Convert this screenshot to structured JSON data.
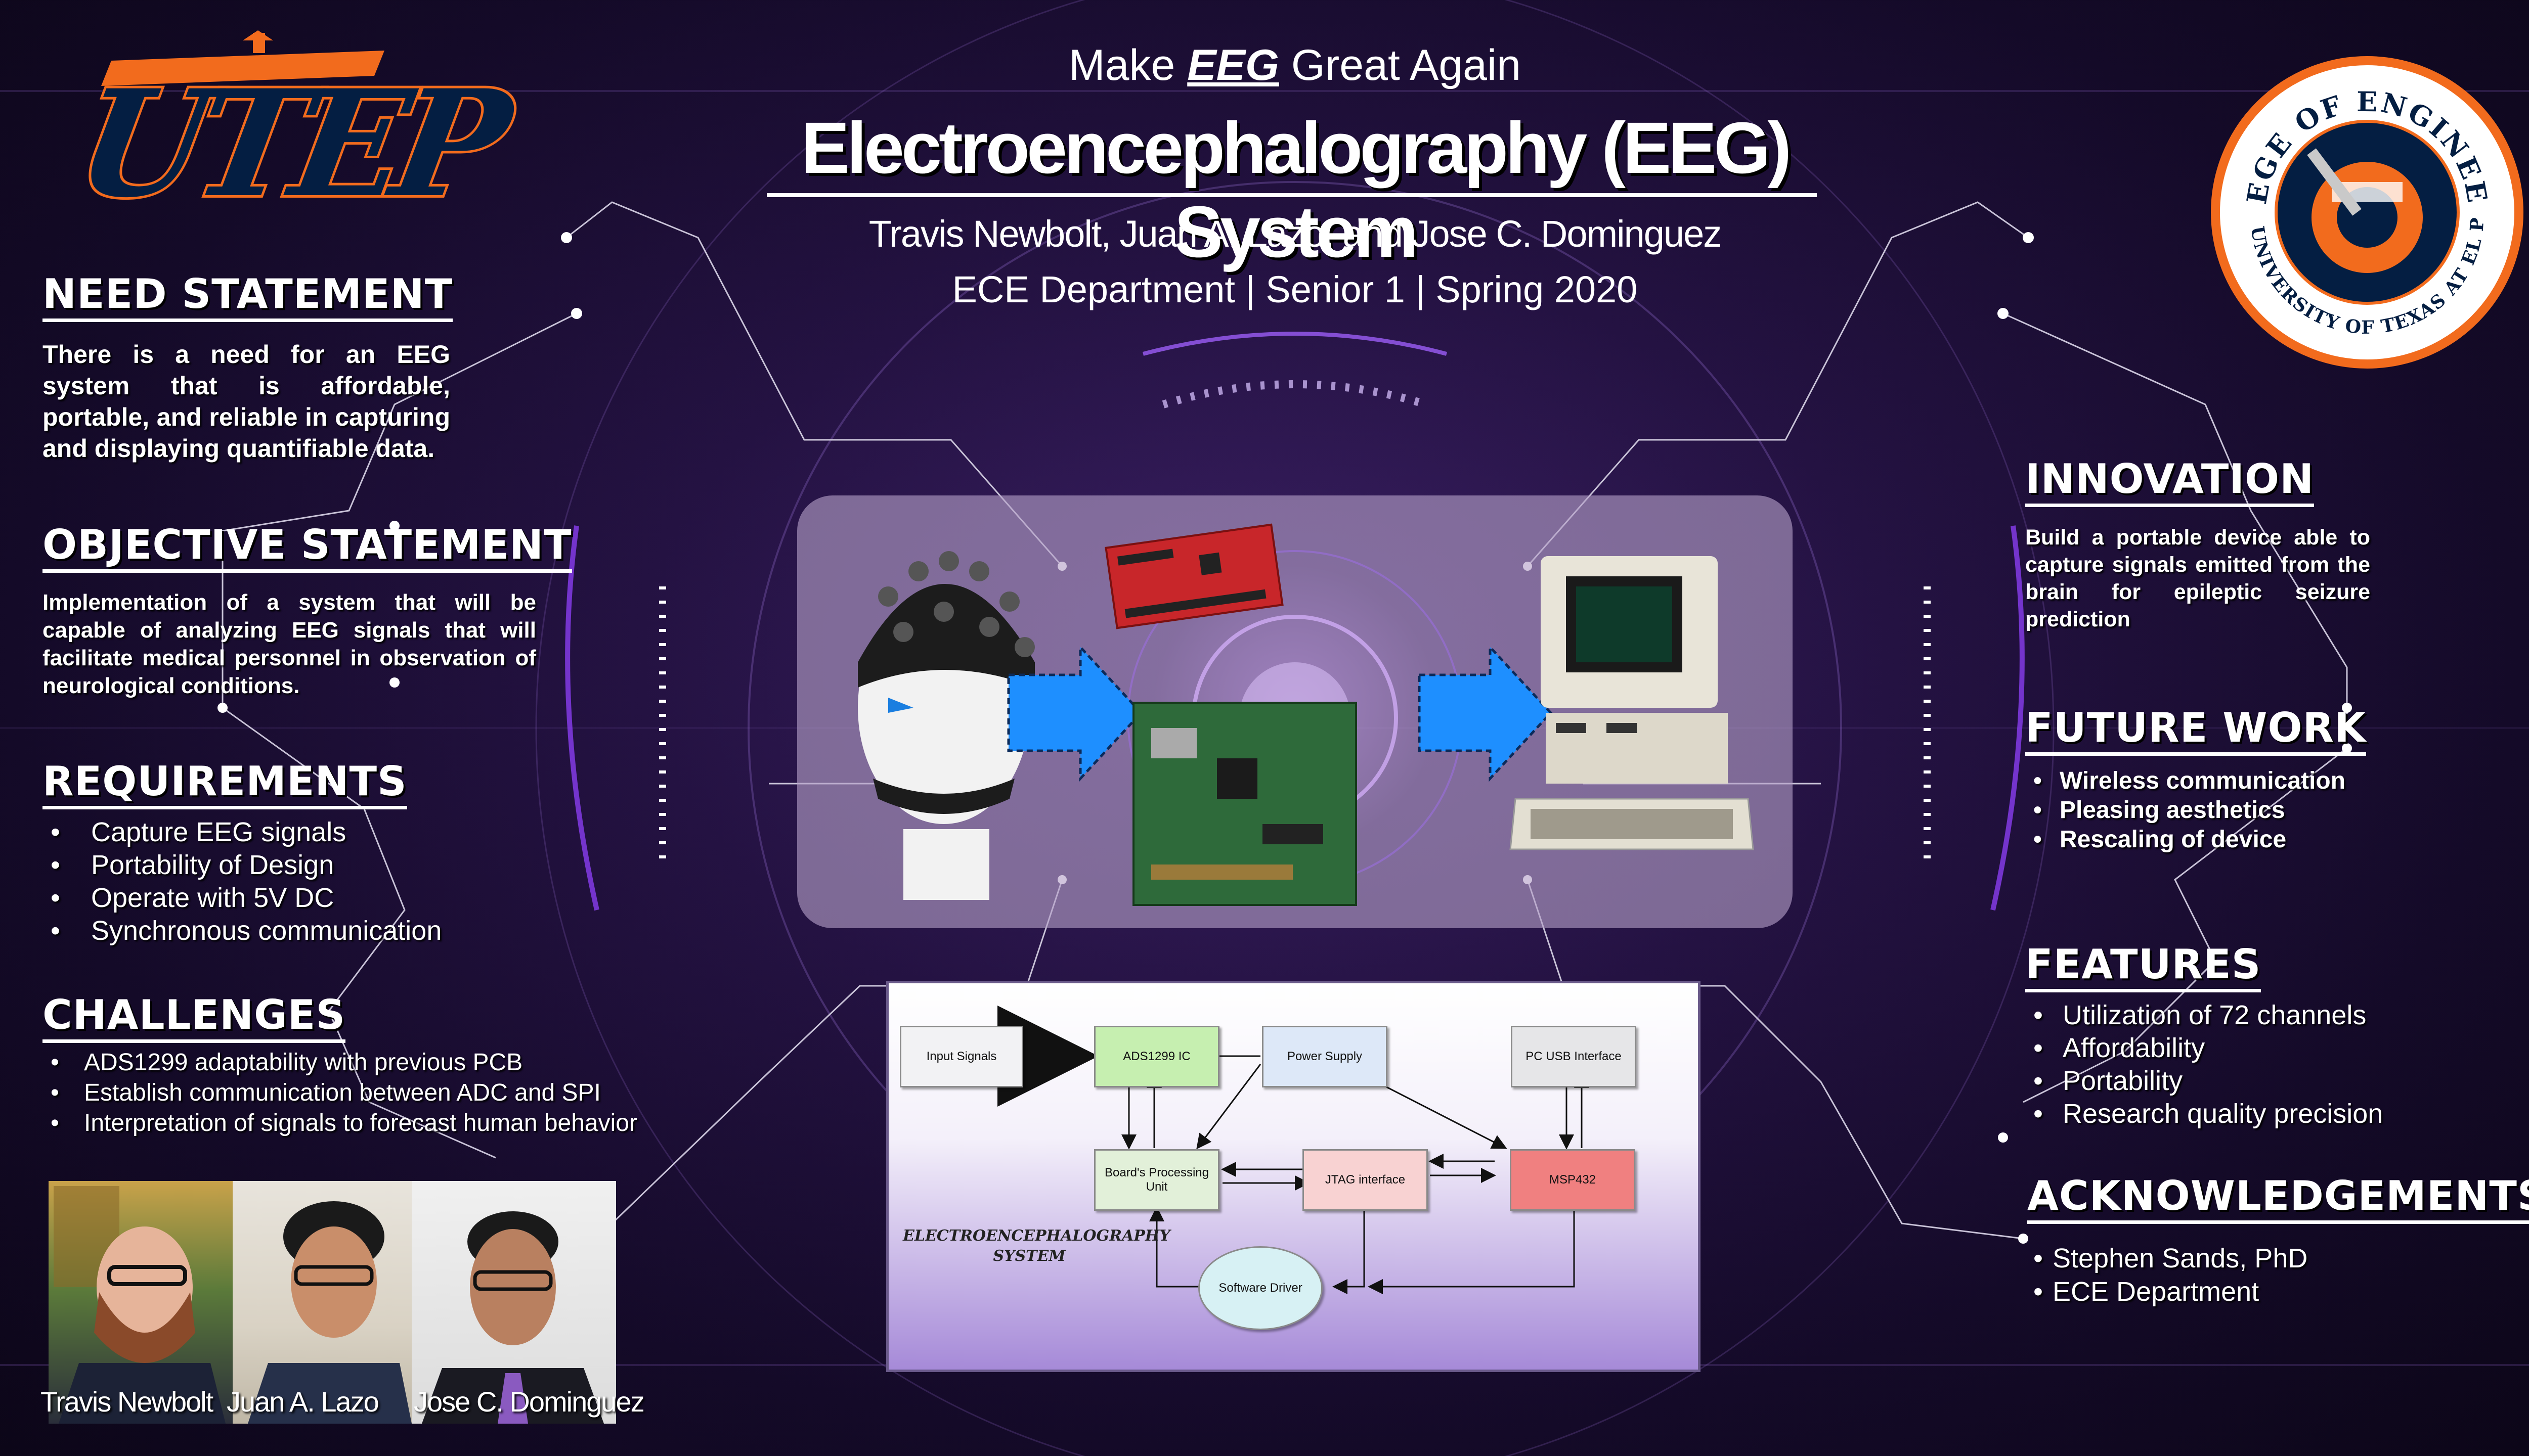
{
  "header": {
    "tagline_pre": "Make ",
    "tagline_em": "EEG",
    "tagline_post": " Great Again",
    "title": "Electroencephalography (EEG) System",
    "authors": "Travis Newbolt, Juan A. Lazo, and Jose C. Dominguez",
    "dept_line": "ECE Department | Senior 1 | Spring 2020"
  },
  "logos": {
    "utep": "UTEP",
    "seal_ring_top": "COLLEGE OF ENGINEERING",
    "seal_ring_bottom": "THE UNIVERSITY OF TEXAS AT EL PASO"
  },
  "need": {
    "title": "NEED STATEMENT",
    "text": "There is a need for an EEG system that is affordable, portable, and reliable in capturing and displaying quantifiable data."
  },
  "objective": {
    "title": "OBJECTIVE STATEMENT",
    "text": "Implementation of a system that will be capable of analyzing EEG signals that will facilitate medical personnel in observation of neurological conditions."
  },
  "requirements": {
    "title": "REQUIREMENTS",
    "items": [
      "Capture EEG signals",
      "Portability of Design",
      "Operate with 5V DC",
      "Synchronous communication"
    ]
  },
  "challenges": {
    "title": "CHALLENGES",
    "items": [
      "ADS1299 adaptability with previous PCB",
      "Establish communication between ADC and SPI",
      "Interpretation of signals to forecast human behavior"
    ]
  },
  "team": {
    "names": [
      "Travis Newbolt",
      "Juan A. Lazo",
      "Jose C. Dominguez"
    ]
  },
  "innovation": {
    "title": "INNOVATION",
    "text": "Build a portable device able to capture signals emitted from the brain for epileptic seizure prediction"
  },
  "future": {
    "title": "FUTURE WORK",
    "items": [
      "Wireless communication",
      "Pleasing aesthetics",
      "Rescaling of device"
    ]
  },
  "features": {
    "title": "FEATURES",
    "items": [
      "Utilization of 72 channels",
      "Affordability",
      "Portability",
      "Research quality precision"
    ]
  },
  "acknowledgements": {
    "title": "ACKNOWLEDGEMENTS",
    "items": [
      "Stephen Sands, PhD",
      "ECE Department"
    ]
  },
  "diagram": {
    "caption_line1": "ELECTROENCEPHALOGRAPHY",
    "caption_line2": "SYSTEM",
    "blocks": {
      "input": "Input Signals",
      "ads": "ADS1299 IC",
      "power": "Power Supply",
      "pcusb": "PC USB Interface",
      "board": "Board's Processing Unit",
      "jtag": "JTAG interface",
      "msp": "MSP432",
      "driver": "Software Driver"
    }
  },
  "colors": {
    "utep_orange": "#f26b1d",
    "utep_navy": "#041e42",
    "arrow_blue": "#1e8fff",
    "ads_green": "#c6efb0",
    "board_green": "#e2f0d9",
    "jtag_pink": "#f8d2d2",
    "msp_red": "#f08080",
    "power_blue": "#dde8f8",
    "driver_cyan": "#d7f1f4"
  }
}
